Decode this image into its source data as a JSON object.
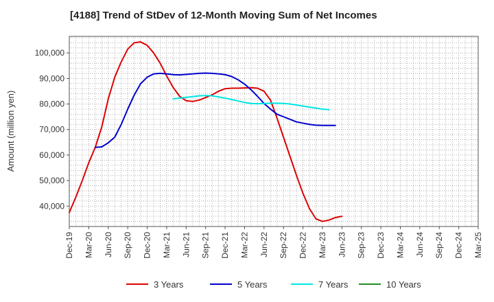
{
  "chart_data": {
    "type": "line",
    "title": "[4188]  Trend of StDev of 12-Month Moving Sum of Net Incomes",
    "xlabel": "",
    "ylabel": "Amount (million yen)",
    "x_tick_labels": [
      "Dec-19",
      "Mar-20",
      "Jun-20",
      "Sep-20",
      "Dec-20",
      "Mar-21",
      "Jun-21",
      "Sep-21",
      "Dec-21",
      "Mar-22",
      "Jun-22",
      "Sep-22",
      "Dec-22",
      "Mar-23",
      "Jun-23",
      "Sep-23",
      "Dec-23",
      "Mar-24",
      "Jun-24",
      "Sep-24",
      "Dec-24",
      "Mar-25"
    ],
    "y_ticks": [
      40000,
      50000,
      60000,
      70000,
      80000,
      90000,
      100000
    ],
    "y_tick_labels": [
      "40,000",
      "50,000",
      "60,000",
      "70,000",
      "80,000",
      "90,000",
      "100,000"
    ],
    "ylim": [
      32000,
      106500
    ],
    "grid": true,
    "legend_position": "bottom",
    "series": [
      {
        "name": "3 Years",
        "color": "#dd0000",
        "points": [
          [
            0,
            37500
          ],
          [
            1,
            43500
          ],
          [
            2,
            50000
          ],
          [
            3,
            57000
          ],
          [
            4,
            63000
          ],
          [
            5,
            71000
          ],
          [
            6,
            82000
          ],
          [
            7,
            90500
          ],
          [
            8,
            96500
          ],
          [
            9,
            101500
          ],
          [
            10,
            104000
          ],
          [
            11,
            104300
          ],
          [
            12,
            103000
          ],
          [
            13,
            100000
          ],
          [
            14,
            96000
          ],
          [
            15,
            91000
          ],
          [
            16,
            86500
          ],
          [
            17,
            83000
          ],
          [
            18,
            81300
          ],
          [
            19,
            81000
          ],
          [
            20,
            81500
          ],
          [
            21,
            82500
          ],
          [
            22,
            83600
          ],
          [
            23,
            85000
          ],
          [
            24,
            86000
          ],
          [
            25,
            86200
          ],
          [
            26,
            86200
          ],
          [
            27,
            86300
          ],
          [
            28,
            86400
          ],
          [
            29,
            86200
          ],
          [
            30,
            85000
          ],
          [
            31,
            81500
          ],
          [
            32,
            74500
          ],
          [
            33,
            67000
          ],
          [
            34,
            59500
          ],
          [
            35,
            52000
          ],
          [
            36,
            45000
          ],
          [
            37,
            39000
          ],
          [
            38,
            35000
          ],
          [
            39,
            34000
          ],
          [
            40,
            34500
          ],
          [
            41,
            35500
          ],
          [
            42,
            36000
          ]
        ]
      },
      {
        "name": "5 Years",
        "color": "#0000cc",
        "points": [
          [
            4,
            63000
          ],
          [
            5,
            63200
          ],
          [
            6,
            64800
          ],
          [
            7,
            67000
          ],
          [
            8,
            72000
          ],
          [
            9,
            78000
          ],
          [
            10,
            83500
          ],
          [
            11,
            88000
          ],
          [
            12,
            90500
          ],
          [
            13,
            91800
          ],
          [
            14,
            92000
          ],
          [
            15,
            91800
          ],
          [
            16,
            91500
          ],
          [
            17,
            91400
          ],
          [
            18,
            91600
          ],
          [
            19,
            91800
          ],
          [
            20,
            92000
          ],
          [
            21,
            92100
          ],
          [
            22,
            92000
          ],
          [
            23,
            91800
          ],
          [
            24,
            91500
          ],
          [
            25,
            90800
          ],
          [
            26,
            89500
          ],
          [
            27,
            87800
          ],
          [
            28,
            85600
          ],
          [
            29,
            83000
          ],
          [
            30,
            80200
          ],
          [
            31,
            78000
          ],
          [
            32,
            76000
          ],
          [
            33,
            75000
          ],
          [
            34,
            74000
          ],
          [
            35,
            73000
          ],
          [
            36,
            72500
          ],
          [
            37,
            72000
          ],
          [
            38,
            71700
          ],
          [
            39,
            71600
          ],
          [
            40,
            71600
          ],
          [
            41,
            71600
          ]
        ]
      },
      {
        "name": "7 Years",
        "color": "#00e5e5",
        "points": [
          [
            16,
            82000
          ],
          [
            17,
            82300
          ],
          [
            18,
            82600
          ],
          [
            19,
            82900
          ],
          [
            20,
            83200
          ],
          [
            21,
            83300
          ],
          [
            22,
            83200
          ],
          [
            23,
            82800
          ],
          [
            24,
            82300
          ],
          [
            25,
            81800
          ],
          [
            26,
            81200
          ],
          [
            27,
            80600
          ],
          [
            28,
            80200
          ],
          [
            29,
            80100
          ],
          [
            30,
            80200
          ],
          [
            31,
            80300
          ],
          [
            32,
            80300
          ],
          [
            33,
            80200
          ],
          [
            34,
            80000
          ],
          [
            35,
            79600
          ],
          [
            36,
            79200
          ],
          [
            37,
            78800
          ],
          [
            38,
            78400
          ],
          [
            39,
            78000
          ],
          [
            40,
            77800
          ]
        ]
      },
      {
        "name": "10 Years",
        "color": "#228b22",
        "points": []
      }
    ]
  }
}
